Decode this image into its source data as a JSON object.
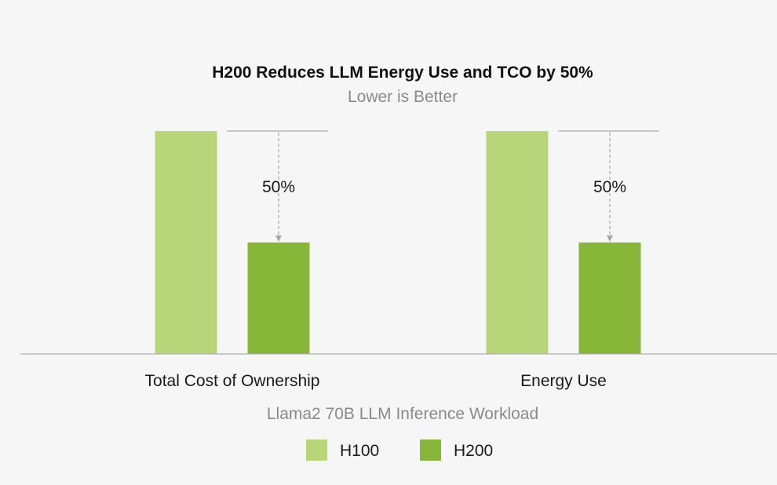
{
  "chart_data": {
    "type": "bar",
    "title": "H200 Reduces LLM Energy Use and TCO by 50%",
    "subtitle": "Lower is Better",
    "xlabel": "Llama2 70B LLM Inference Workload",
    "ylabel": "",
    "categories": [
      "Total Cost of Ownership",
      "Energy Use"
    ],
    "series": [
      {
        "name": "H100",
        "values": [
          1.0,
          1.0
        ],
        "color": "#b8d57a"
      },
      {
        "name": "H200",
        "values": [
          0.5,
          0.5
        ],
        "color": "#87b638"
      }
    ],
    "ylim": [
      0,
      1
    ],
    "grid": false,
    "legend": "bottom-center",
    "annotations": [
      {
        "category": "Total Cost of Ownership",
        "label": "50%"
      },
      {
        "category": "Energy Use",
        "label": "50%"
      }
    ]
  },
  "colors": {
    "background": "#f6f6f6",
    "axis": "#b0b0b0",
    "annotation_line": "#a8a8a8"
  }
}
